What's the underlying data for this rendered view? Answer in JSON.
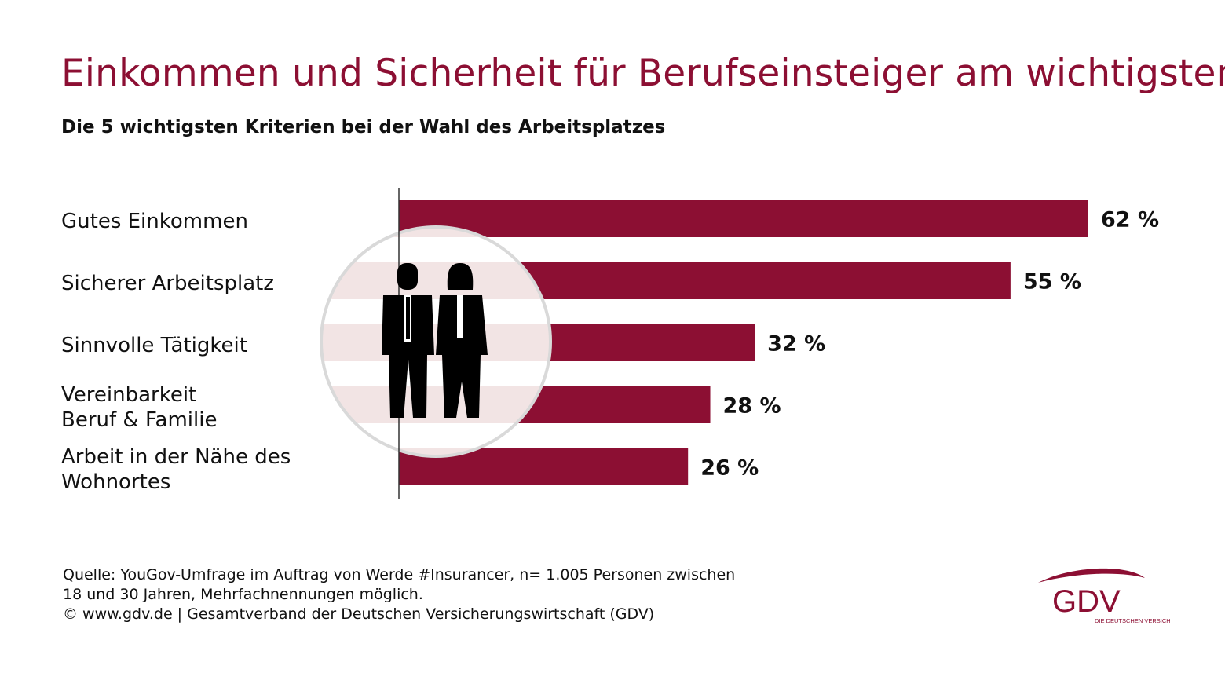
{
  "title": "Einkommen und Sicherheit für Berufseinsteiger am wichtigsten",
  "subtitle": "Die 5 wichtigsten Kriterien bei der Wahl des Arbeitsplatzes",
  "chart_data": {
    "type": "bar",
    "orientation": "horizontal",
    "categories": [
      [
        "Gutes Einkommen"
      ],
      [
        "Sicherer Arbeitsplatz"
      ],
      [
        "Sinnvolle Tätigkeit"
      ],
      [
        "Vereinbarkeit",
        "Beruf & Familie"
      ],
      [
        "Arbeit in der Nähe des",
        "Wohnortes"
      ]
    ],
    "values": [
      62,
      55,
      32,
      28,
      26
    ],
    "value_labels": [
      "62 %",
      "55 %",
      "32 %",
      "28 %",
      "26 %"
    ],
    "unit": "%",
    "xlim": [
      0,
      62
    ],
    "bar_color": "#8c0f33",
    "grid": false,
    "icon": "people-icon"
  },
  "footer": {
    "line1": "Quelle: YouGov-Umfrage im Auftrag von Werde #Insurancer, n= 1.005 Personen zwischen",
    "line2": "18 und 30 Jahren, Mehrfachnennungen möglich.",
    "line3": "© www.gdv.de | Gesamtverband der Deutschen Versicherungswirtschaft (GDV)"
  },
  "logo": {
    "text": "GDV",
    "tagline": "DIE DEUTSCHEN VERSICHERER",
    "color": "#8c0f33"
  }
}
